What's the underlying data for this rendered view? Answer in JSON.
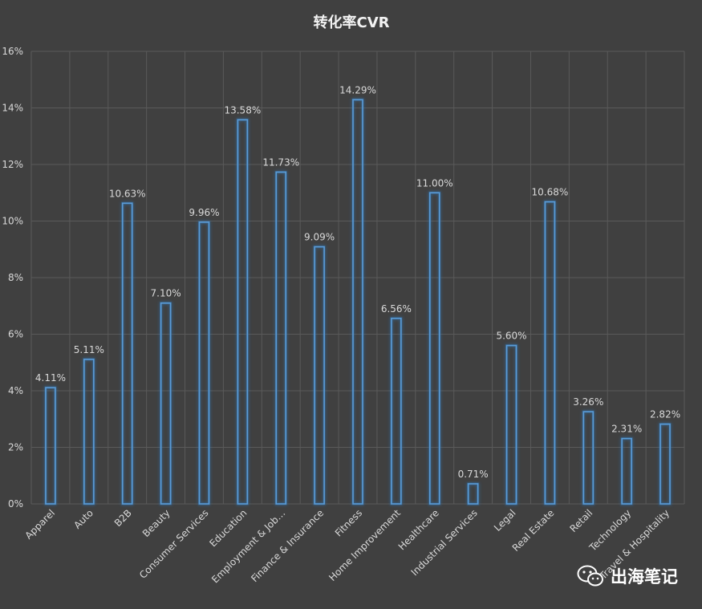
{
  "chart_data": {
    "type": "bar",
    "title": "转化率CVR",
    "xlabel": "",
    "ylabel": "",
    "ylim": [
      0,
      16
    ],
    "ytick_values": [
      0,
      2,
      4,
      6,
      8,
      10,
      12,
      14,
      16
    ],
    "ytick_labels": [
      "0%",
      "2%",
      "4%",
      "6%",
      "8%",
      "10%",
      "12%",
      "14%",
      "16%"
    ],
    "grid": true,
    "categories": [
      "Apparel",
      "Auto",
      "B2B",
      "Beauty",
      "Consumer Services",
      "Education",
      "Employment & Job…",
      "Finance & Insurance",
      "Fitness",
      "Home Improvement",
      "Healthcare",
      "Industrial Services",
      "Legal",
      "Real Estate",
      "Retail",
      "Technology",
      "Travel & Hospitality"
    ],
    "values": [
      4.11,
      5.11,
      10.63,
      7.1,
      9.96,
      13.58,
      11.73,
      9.09,
      14.29,
      6.56,
      11.0,
      0.71,
      5.6,
      10.68,
      3.26,
      2.31,
      2.82
    ],
    "data_labels": [
      "4.11%",
      "5.11%",
      "10.63%",
      "7.10%",
      "9.96%",
      "13.58%",
      "11.73%",
      "9.09%",
      "14.29%",
      "6.56%",
      "11.00%",
      "0.71%",
      "5.60%",
      "10.68%",
      "3.26%",
      "2.31%",
      "2.82%"
    ]
  },
  "watermark": {
    "text": "出海笔记",
    "icon": "wechat-icon"
  },
  "colors": {
    "background": "#404040",
    "grid": "#5a5a5a",
    "bar_stroke": "#5b9bd5",
    "bar_glow": "#2e75b6",
    "text": "#d9d9d9",
    "title": "#f2f2f2"
  }
}
